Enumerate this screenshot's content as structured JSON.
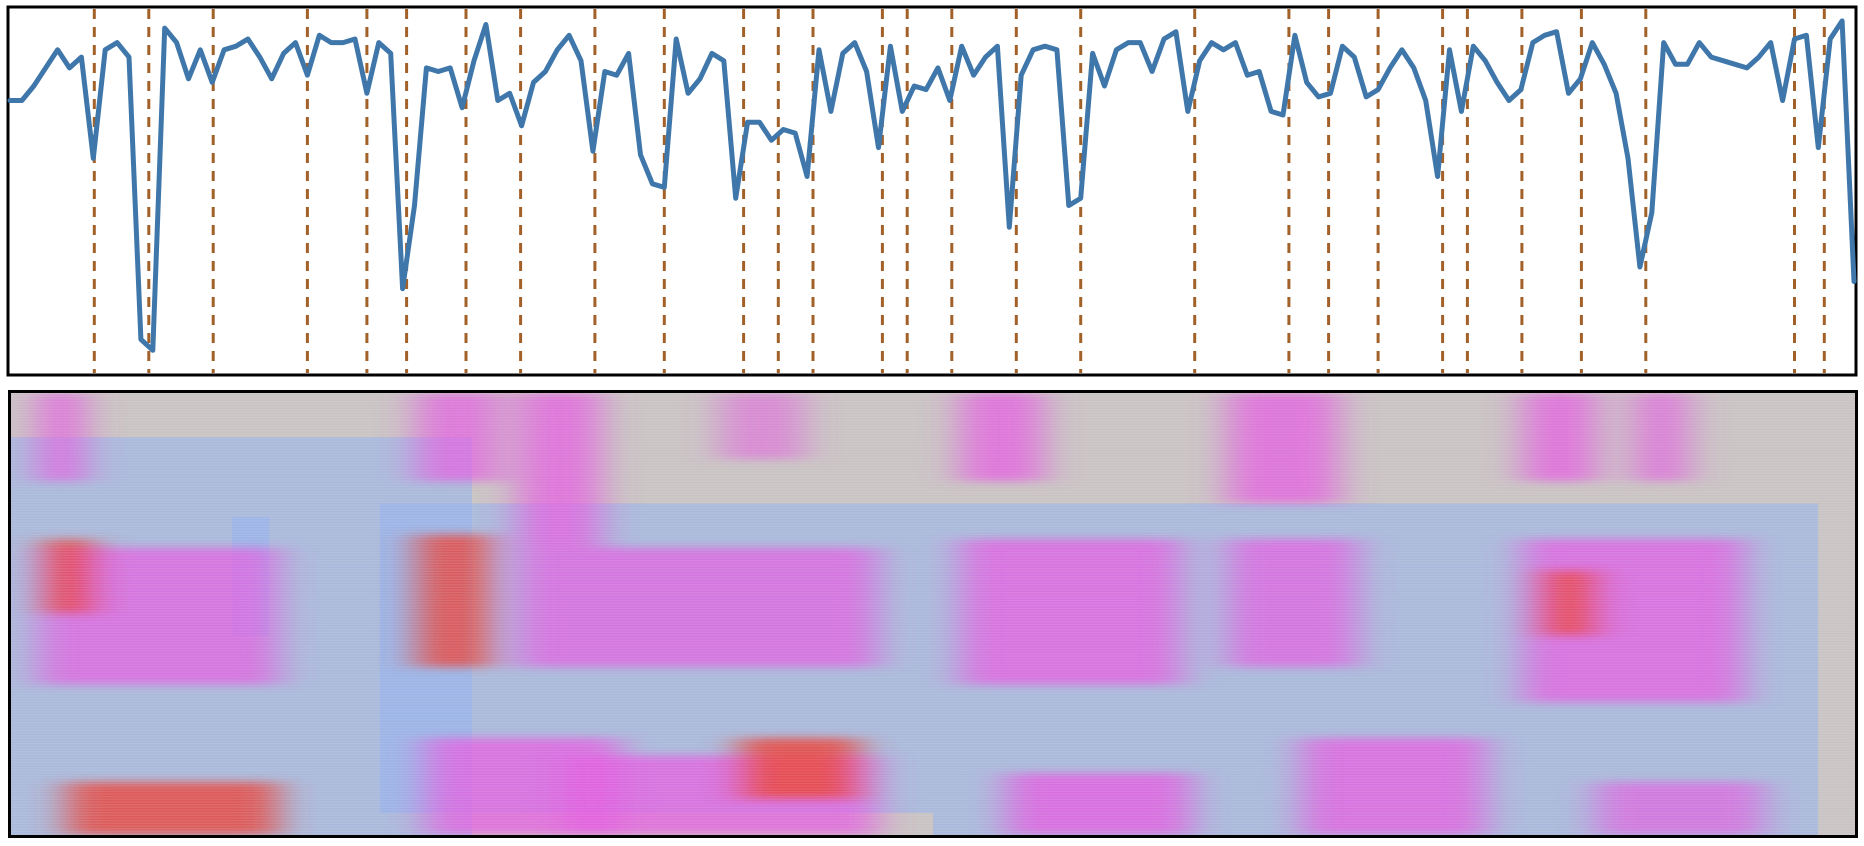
{
  "colors": {
    "line": "#3f77ab",
    "boundary": "#a3612a",
    "frame": "#000000",
    "spec_background": "#c9c3c3",
    "spec_low": "#8fb0ee",
    "spec_mid": "#e35be0",
    "spec_high": "#e8453c"
  },
  "chart_data": [
    {
      "type": "line",
      "grid": false,
      "xlim": [
        0,
        186
      ],
      "ylim": [
        0,
        1
      ],
      "series": [
        {
          "values": [
            0.75,
            0.75,
            0.79,
            0.84,
            0.89,
            0.84,
            0.87,
            0.59,
            0.89,
            0.91,
            0.87,
            0.09,
            0.06,
            0.95,
            0.91,
            0.81,
            0.89,
            0.8,
            0.89,
            0.9,
            0.92,
            0.87,
            0.81,
            0.88,
            0.91,
            0.82,
            0.93,
            0.91,
            0.91,
            0.92,
            0.77,
            0.91,
            0.88,
            0.23,
            0.46,
            0.84,
            0.83,
            0.84,
            0.73,
            0.86,
            0.96,
            0.75,
            0.77,
            0.68,
            0.8,
            0.83,
            0.89,
            0.93,
            0.86,
            0.61,
            0.83,
            0.82,
            0.88,
            0.6,
            0.52,
            0.51,
            0.92,
            0.77,
            0.81,
            0.88,
            0.86,
            0.48,
            0.69,
            0.69,
            0.64,
            0.67,
            0.66,
            0.54,
            0.89,
            0.72,
            0.88,
            0.91,
            0.83,
            0.62,
            0.9,
            0.72,
            0.79,
            0.78,
            0.84,
            0.75,
            0.9,
            0.82,
            0.87,
            0.9,
            0.4,
            0.82,
            0.89,
            0.9,
            0.89,
            0.46,
            0.48,
            0.88,
            0.79,
            0.89,
            0.91,
            0.91,
            0.83,
            0.92,
            0.94,
            0.72,
            0.86,
            0.91,
            0.89,
            0.91,
            0.82,
            0.83,
            0.72,
            0.71,
            0.93,
            0.8,
            0.76,
            0.77,
            0.9,
            0.87,
            0.76,
            0.78,
            0.84,
            0.89,
            0.84,
            0.75,
            0.54,
            0.89,
            0.72,
            0.9,
            0.86,
            0.8,
            0.75,
            0.78,
            0.91,
            0.93,
            0.94,
            0.77,
            0.81,
            0.91,
            0.85,
            0.77,
            0.59,
            0.29,
            0.44,
            0.91,
            0.85,
            0.85,
            0.91,
            0.87,
            0.86,
            0.85,
            0.84,
            0.87,
            0.91,
            0.75,
            0.92,
            0.93,
            0.62,
            0.92,
            0.97,
            0.25
          ]
        }
      ],
      "boundaries": [
        8.5,
        14,
        20.5,
        30,
        36,
        40,
        46,
        51.5,
        59,
        66,
        74,
        77.5,
        81,
        88,
        90.5,
        95,
        101.5,
        108,
        119.5,
        129,
        133,
        138,
        144.5,
        147,
        152.5,
        158.5,
        165,
        180,
        183
      ]
    },
    {
      "type": "heatmap",
      "grid": false,
      "bands": [
        {
          "x": [
            0.015,
            0.04
          ],
          "y": [
            0.0,
            0.2
          ],
          "level": 0.85
        },
        {
          "x": [
            0.015,
            0.145
          ],
          "y": [
            0.35,
            0.66
          ],
          "level": 0.82
        },
        {
          "x": [
            0.018,
            0.045
          ],
          "y": [
            0.33,
            0.5
          ],
          "level": 0.95
        },
        {
          "x": [
            0.03,
            0.145
          ],
          "y": [
            0.88,
            1.0
          ],
          "level": 0.9
        },
        {
          "x": [
            0.22,
            0.265
          ],
          "y": [
            0.0,
            0.2
          ],
          "level": 0.8
        },
        {
          "x": [
            0.22,
            0.26
          ],
          "y": [
            0.32,
            0.62
          ],
          "level": 0.9
        },
        {
          "x": [
            0.225,
            0.33
          ],
          "y": [
            0.78,
            1.0
          ],
          "level": 0.85
        },
        {
          "x": [
            0.275,
            0.32
          ],
          "y": [
            0.0,
            0.35
          ],
          "level": 0.85
        },
        {
          "x": [
            0.275,
            0.47
          ],
          "y": [
            0.35,
            0.62
          ],
          "level": 0.8
        },
        {
          "x": [
            0.3,
            0.47
          ],
          "y": [
            0.82,
            1.0
          ],
          "level": 0.85
        },
        {
          "x": [
            0.395,
            0.46
          ],
          "y": [
            0.78,
            0.92
          ],
          "level": 0.95
        },
        {
          "x": [
            0.385,
            0.43
          ],
          "y": [
            0.0,
            0.15
          ],
          "level": 0.6
        },
        {
          "x": [
            0.515,
            0.56
          ],
          "y": [
            0.0,
            0.2
          ],
          "level": 0.85
        },
        {
          "x": [
            0.515,
            0.635
          ],
          "y": [
            0.33,
            0.66
          ],
          "level": 0.85
        },
        {
          "x": [
            0.54,
            0.64
          ],
          "y": [
            0.86,
            1.0
          ],
          "level": 0.88
        },
        {
          "x": [
            0.66,
            0.72
          ],
          "y": [
            0.0,
            0.25
          ],
          "level": 0.85
        },
        {
          "x": [
            0.66,
            0.73
          ],
          "y": [
            0.33,
            0.62
          ],
          "level": 0.8
        },
        {
          "x": [
            0.7,
            0.8
          ],
          "y": [
            0.78,
            1.0
          ],
          "level": 0.85
        },
        {
          "x": [
            0.82,
            0.86
          ],
          "y": [
            0.0,
            0.2
          ],
          "level": 0.85
        },
        {
          "x": [
            0.82,
            0.94
          ],
          "y": [
            0.33,
            0.7
          ],
          "level": 0.85
        },
        {
          "x": [
            0.83,
            0.86
          ],
          "y": [
            0.4,
            0.55
          ],
          "level": 0.95
        },
        {
          "x": [
            0.88,
            0.91
          ],
          "y": [
            0.0,
            0.2
          ],
          "level": 0.75
        },
        {
          "x": [
            0.86,
            0.95
          ],
          "y": [
            0.88,
            1.0
          ],
          "level": 0.75
        }
      ]
    }
  ]
}
